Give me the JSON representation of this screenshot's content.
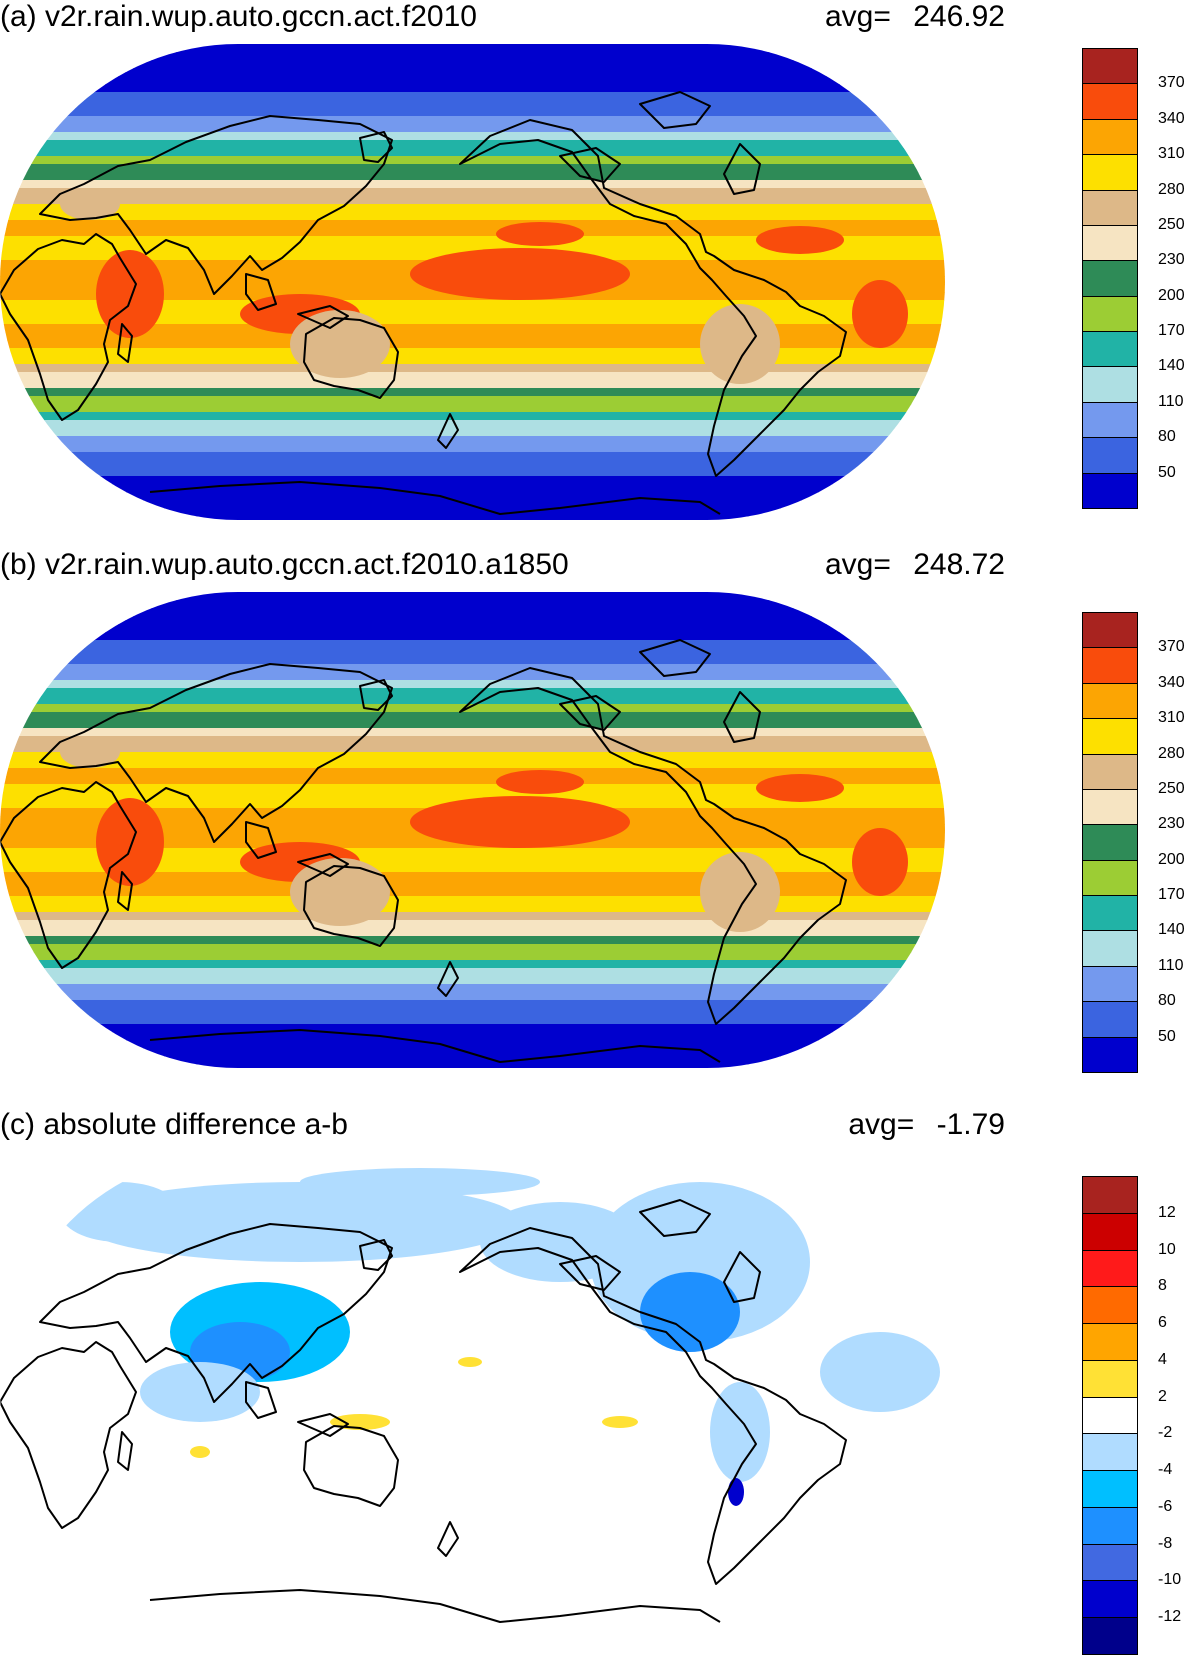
{
  "panels": [
    {
      "id": "a",
      "title": "(a) v2r.rain.wup.auto.gccn.act.f2010",
      "avg_label": "avg=",
      "avg_value": "246.92",
      "variant": "abs",
      "colorbar": {
        "colors": [
          "#a8231f",
          "#f94c0c",
          "#fca503",
          "#fde000",
          "#ddb888",
          "#f6e4c2",
          "#2e8b57",
          "#9ccd34",
          "#21b3a6",
          "#aedfe3",
          "#7499ee",
          "#3b64e0",
          "#0000cd"
        ],
        "labels": [
          "370",
          "340",
          "310",
          "280",
          "250",
          "230",
          "200",
          "170",
          "140",
          "110",
          "80",
          "50"
        ]
      }
    },
    {
      "id": "b",
      "title": "(b) v2r.rain.wup.auto.gccn.act.f2010.a1850",
      "avg_label": "avg=",
      "avg_value": "248.72",
      "variant": "abs",
      "colorbar": {
        "colors": [
          "#a8231f",
          "#f94c0c",
          "#fca503",
          "#fde000",
          "#ddb888",
          "#f6e4c2",
          "#2e8b57",
          "#9ccd34",
          "#21b3a6",
          "#aedfe3",
          "#7499ee",
          "#3b64e0",
          "#0000cd"
        ],
        "labels": [
          "370",
          "340",
          "310",
          "280",
          "250",
          "230",
          "200",
          "170",
          "140",
          "110",
          "80",
          "50"
        ]
      }
    },
    {
      "id": "c",
      "title": "(c) absolute difference a-b",
      "avg_label": "avg=",
      "avg_value": "-1.79",
      "variant": "diff",
      "colorbar": {
        "colors": [
          "#a8231f",
          "#cc0000",
          "#ff1a1a",
          "#ff6a00",
          "#ffa500",
          "#ffe135",
          "#ffffff",
          "#b0dcff",
          "#00bfff",
          "#1e90ff",
          "#4169e1",
          "#0000cd",
          "#00008b"
        ],
        "labels": [
          "12",
          "10",
          "8",
          "6",
          "4",
          "2",
          "-2",
          "-4",
          "-6",
          "-8",
          "-10",
          "-12"
        ]
      }
    }
  ]
}
